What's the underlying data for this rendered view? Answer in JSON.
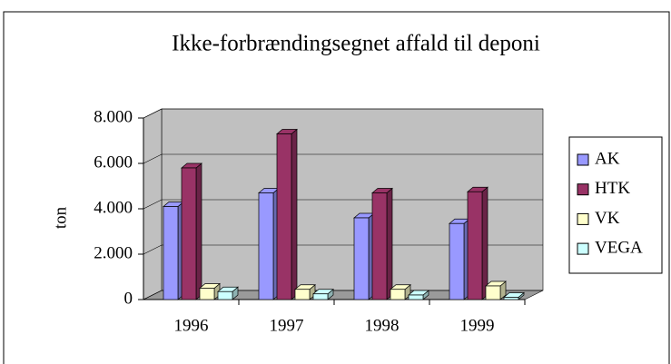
{
  "chart_data": {
    "type": "bar3d",
    "title": "Ikke-forbrændingsegnet affald til deponi",
    "y_label": "ton",
    "categories": [
      "1996",
      "1997",
      "1998",
      "1999"
    ],
    "series": [
      {
        "name": "AK",
        "color": "#9999ff",
        "values": [
          4100,
          4700,
          3600,
          3350
        ]
      },
      {
        "name": "HTK",
        "color": "#993366",
        "values": [
          5800,
          7300,
          4700,
          4750
        ]
      },
      {
        "name": "VK",
        "color": "#ffffcc",
        "values": [
          500,
          450,
          450,
          600
        ]
      },
      {
        "name": "VEGA",
        "color": "#ccffff",
        "values": [
          350,
          250,
          200,
          100
        ]
      }
    ],
    "ylim": [
      0,
      8000
    ],
    "yticks": [
      0,
      {
        "value": 2000,
        "label": "2.000"
      },
      {
        "value": 4000,
        "label": "4.000"
      },
      {
        "value": 6000,
        "label": "6.000"
      },
      {
        "value": 8000,
        "label": "8.000"
      }
    ],
    "grid": true,
    "legend": "right"
  }
}
